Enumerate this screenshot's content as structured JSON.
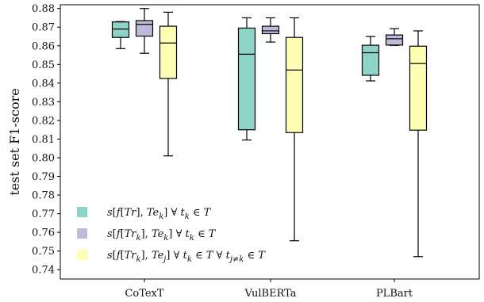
{
  "chart_data": {
    "type": "box",
    "title": "",
    "xlabel": "",
    "ylabel": "test set F1-score",
    "ylim": [
      0.735,
      0.882
    ],
    "yticks": [
      0.74,
      0.75,
      0.76,
      0.77,
      0.78,
      0.79,
      0.8,
      0.81,
      0.82,
      0.83,
      0.84,
      0.85,
      0.86,
      0.87,
      0.88
    ],
    "ytick_labels": [
      "0.74",
      "0.75",
      "0.76",
      "0.77",
      "0.78",
      "0.79",
      "0.80",
      "0.81",
      "0.82",
      "0.83",
      "0.84",
      "0.85",
      "0.86",
      "0.87",
      "0.88"
    ],
    "categories": [
      "CoTexT",
      "VulBERTa",
      "PLBart"
    ],
    "grid": false,
    "legend_position": "bottom-left",
    "series": [
      {
        "name": "s[f[Tr], Te_k] ∀ t_k ∈ T",
        "color": "#8dd3c7",
        "boxes": [
          {
            "whisker_low": 0.8585,
            "q1": 0.8645,
            "median": 0.869,
            "q3": 0.8728,
            "whisker_high": 0.873
          },
          {
            "whisker_low": 0.8095,
            "q1": 0.815,
            "median": 0.8555,
            "q3": 0.8695,
            "whisker_high": 0.875
          },
          {
            "whisker_low": 0.8412,
            "q1": 0.8442,
            "median": 0.8563,
            "q3": 0.8603,
            "whisker_high": 0.865
          }
        ]
      },
      {
        "name": "s[f[Tr_k], Te_k] ∀ t_k ∈ T",
        "color": "#bebada",
        "boxes": [
          {
            "whisker_low": 0.856,
            "q1": 0.8652,
            "median": 0.8715,
            "q3": 0.8735,
            "whisker_high": 0.88
          },
          {
            "whisker_low": 0.862,
            "q1": 0.8665,
            "median": 0.868,
            "q3": 0.8705,
            "whisker_high": 0.875
          },
          {
            "whisker_low": 0.8602,
            "q1": 0.8604,
            "median": 0.8638,
            "q3": 0.8658,
            "whisker_high": 0.8692
          }
        ]
      },
      {
        "name": "s[f[Tr_k], Te_j] ∀ t_k ∈ T ∀ t_j≠k ∈ T",
        "color": "#ffffb3",
        "boxes": [
          {
            "whisker_low": 0.801,
            "q1": 0.8425,
            "median": 0.8615,
            "q3": 0.8705,
            "whisker_high": 0.878
          },
          {
            "whisker_low": 0.7555,
            "q1": 0.8135,
            "median": 0.847,
            "q3": 0.8645,
            "whisker_high": 0.875
          },
          {
            "whisker_low": 0.747,
            "q1": 0.8148,
            "median": 0.8505,
            "q3": 0.8598,
            "whisker_high": 0.868
          }
        ]
      }
    ]
  }
}
